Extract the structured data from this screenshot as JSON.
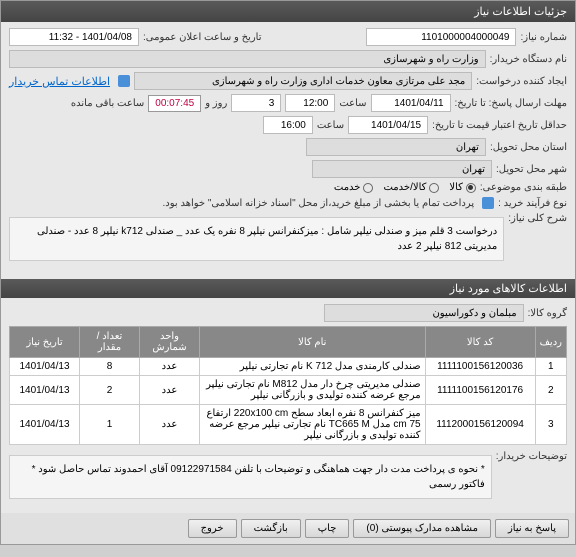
{
  "header": "جزئیات اطلاعات نیاز",
  "fields": {
    "reqNo_label": "شماره نیاز:",
    "reqNo": "1101000004000049",
    "announceDate_label": "تاریخ و ساعت اعلان عمومی:",
    "announceDate": "1401/04/08 - 11:32",
    "buyer_label": "نام دستگاه خریدار:",
    "buyer": "وزارت راه و شهرسازی",
    "creator_label": "ایجاد کننده درخواست:",
    "creator": "مجد علی  مرتازی معاون خدمات اداری وزارت راه و شهرسازی",
    "contact_link": "اطلاعات تماس خریدار",
    "deadline_label": "مهلت ارسال پاسخ: تا تاریخ:",
    "deadline_date": "1401/04/11",
    "time_label": "ساعت",
    "deadline_time": "12:00",
    "days_label": "روز و",
    "days": "3",
    "remaining_label": "ساعت باقی مانده",
    "timer": "00:07:45",
    "validity_label": "حداقل تاریخ اعتبار قیمت تا تاریخ:",
    "validity_date": "1401/04/15",
    "validity_time": "16:00",
    "province_req_label": "استان محل تحویل:",
    "province_req": "تهران",
    "city_req_label": "شهر محل تحویل:",
    "city_req": "تهران",
    "category_label": "طبقه بندی موضوعی:",
    "cat_goods": "کالا",
    "cat_service": "کالا/خدمت",
    "cat_srv": "خدمت",
    "buyType_label": "نوع فرآیند خرید :",
    "buyType_note": "پرداخت تمام یا بخشی از مبلغ خرید،از محل \"اسناد خزانه اسلامی\" خواهد بود.",
    "mainDesc_label": "شرح کلی نیاز:",
    "mainDesc": "درخواست 3 قلم میز و صندلی نیلپر شامل : میزکنفرانس نیلپر 8 نفره یک عدد _ صندلی k712 نیلپر 8 عدد - صندلی مدیریتی 812 نیلپر 2 عدد",
    "section2": "اطلاعات کالاهای مورد نیاز",
    "group_label": "گروه کالا:",
    "group": "مبلمان و دکوراسیون",
    "th_row": "ردیف",
    "th_code": "کد کالا",
    "th_name": "نام کالا",
    "th_unit": "واحد شمارش",
    "th_qty": "تعداد / مقدار",
    "th_date": "تاریخ نیاز",
    "buyerDesc_label": "توضیحات خریدار:",
    "buyerDesc": "* نحوه ی پرداخت مدت دار جهت هماهنگی و توضیحات با تلفن 09122971584 آقای احمدوند تماس حاصل شود * فاکتور رسمی"
  },
  "rows": [
    {
      "n": "1",
      "code": "1111100156120036",
      "name": "صندلی کارمندی مدل K 712 نام تجارتی نیلپر",
      "unit": "عدد",
      "qty": "8",
      "date": "1401/04/13"
    },
    {
      "n": "2",
      "code": "1111100156120176",
      "name": "صندلی مدیریتی چرخ دار مدل M812 نام تجارتی نیلپر مرجع عرضه کننده تولیدی و بازرگانی نیلپر",
      "unit": "عدد",
      "qty": "2",
      "date": "1401/04/13"
    },
    {
      "n": "3",
      "code": "1112000156120094",
      "name": "میز کنفرانس 8 نفره ابعاد سطح 220x100 cm ارتفاع 75 cm مدل TC665 M نام تجارتی نیلپر مرجع عرضه کننده تولیدی و بازرگانی نیلپر",
      "unit": "عدد",
      "qty": "1",
      "date": "1401/04/13"
    }
  ],
  "buttons": {
    "respond": "پاسخ به نیاز",
    "docs": "مشاهده مدارک پیوستی",
    "print": "چاپ",
    "back": "بازگشت",
    "exit": "خروج",
    "zero": "(0)"
  }
}
